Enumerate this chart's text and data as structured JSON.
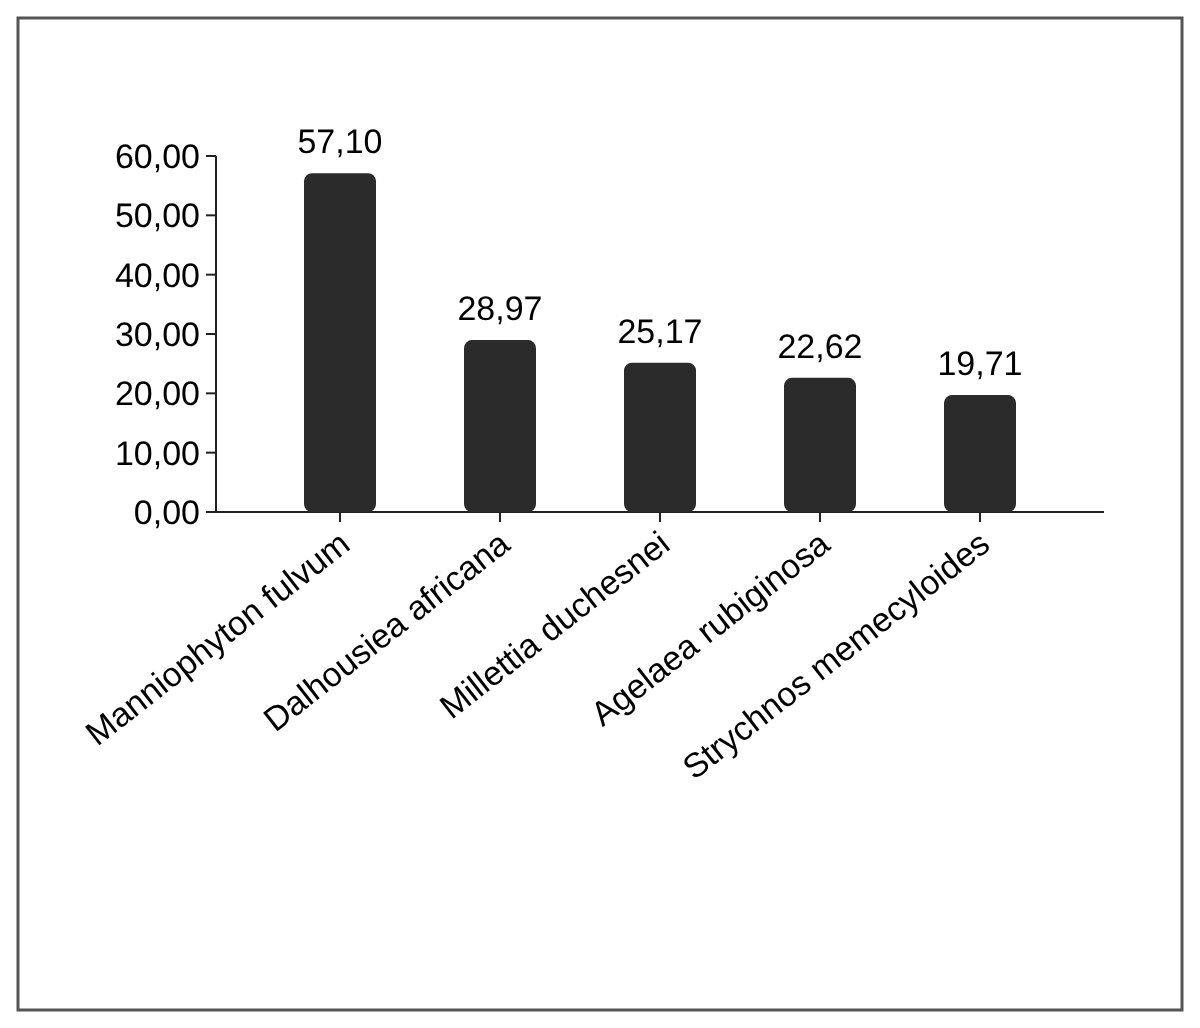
{
  "chart_data": {
    "type": "bar",
    "categories": [
      "Manniophyton fulvum",
      "Dalhousiea africana",
      "Millettia duchesnei",
      "Agelaea rubiginosa",
      "Strychnos memecyloides"
    ],
    "values": [
      57.1,
      28.97,
      25.17,
      22.62,
      19.71
    ],
    "value_labels": [
      "57,10",
      "28,97",
      "25,17",
      "22,62",
      "19,71"
    ],
    "color": "#2b2b2b",
    "ylim": [
      0,
      60
    ],
    "yticks": [
      {
        "value": 0,
        "label": "0,00"
      },
      {
        "value": 10,
        "label": "10,00"
      },
      {
        "value": 20,
        "label": "20,00"
      },
      {
        "value": 30,
        "label": "30,00"
      },
      {
        "value": 40,
        "label": "40,00"
      },
      {
        "value": 50,
        "label": "50,00"
      },
      {
        "value": 60,
        "label": "60,00"
      }
    ],
    "grid": false
  }
}
